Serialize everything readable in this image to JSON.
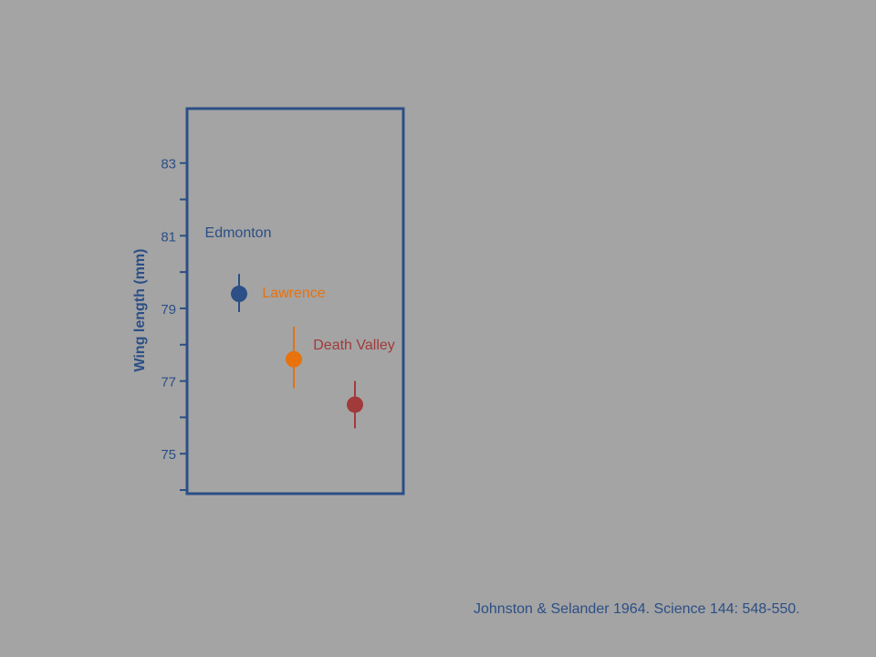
{
  "chart_data": {
    "type": "scatter",
    "ylabel": "Wing length (mm)",
    "ylim": [
      73.9,
      84.5
    ],
    "yticks": [
      75,
      77,
      79,
      81,
      83
    ],
    "minor_yticks": [
      74,
      76,
      78,
      80,
      82
    ],
    "grid": false,
    "points": [
      {
        "label": "Edmonton",
        "y": 79.4,
        "err_low": 78.9,
        "err_high": 79.95,
        "color": "#2b4f86"
      },
      {
        "label": "Lawrence",
        "y": 77.6,
        "err_low": 76.8,
        "err_high": 78.5,
        "color": "#e8720c"
      },
      {
        "label": "Death Valley",
        "y": 76.35,
        "err_low": 75.7,
        "err_high": 77.0,
        "color": "#a13a3a"
      }
    ]
  },
  "citation": "Johnston & Selander 1964. Science 144: 548-550."
}
